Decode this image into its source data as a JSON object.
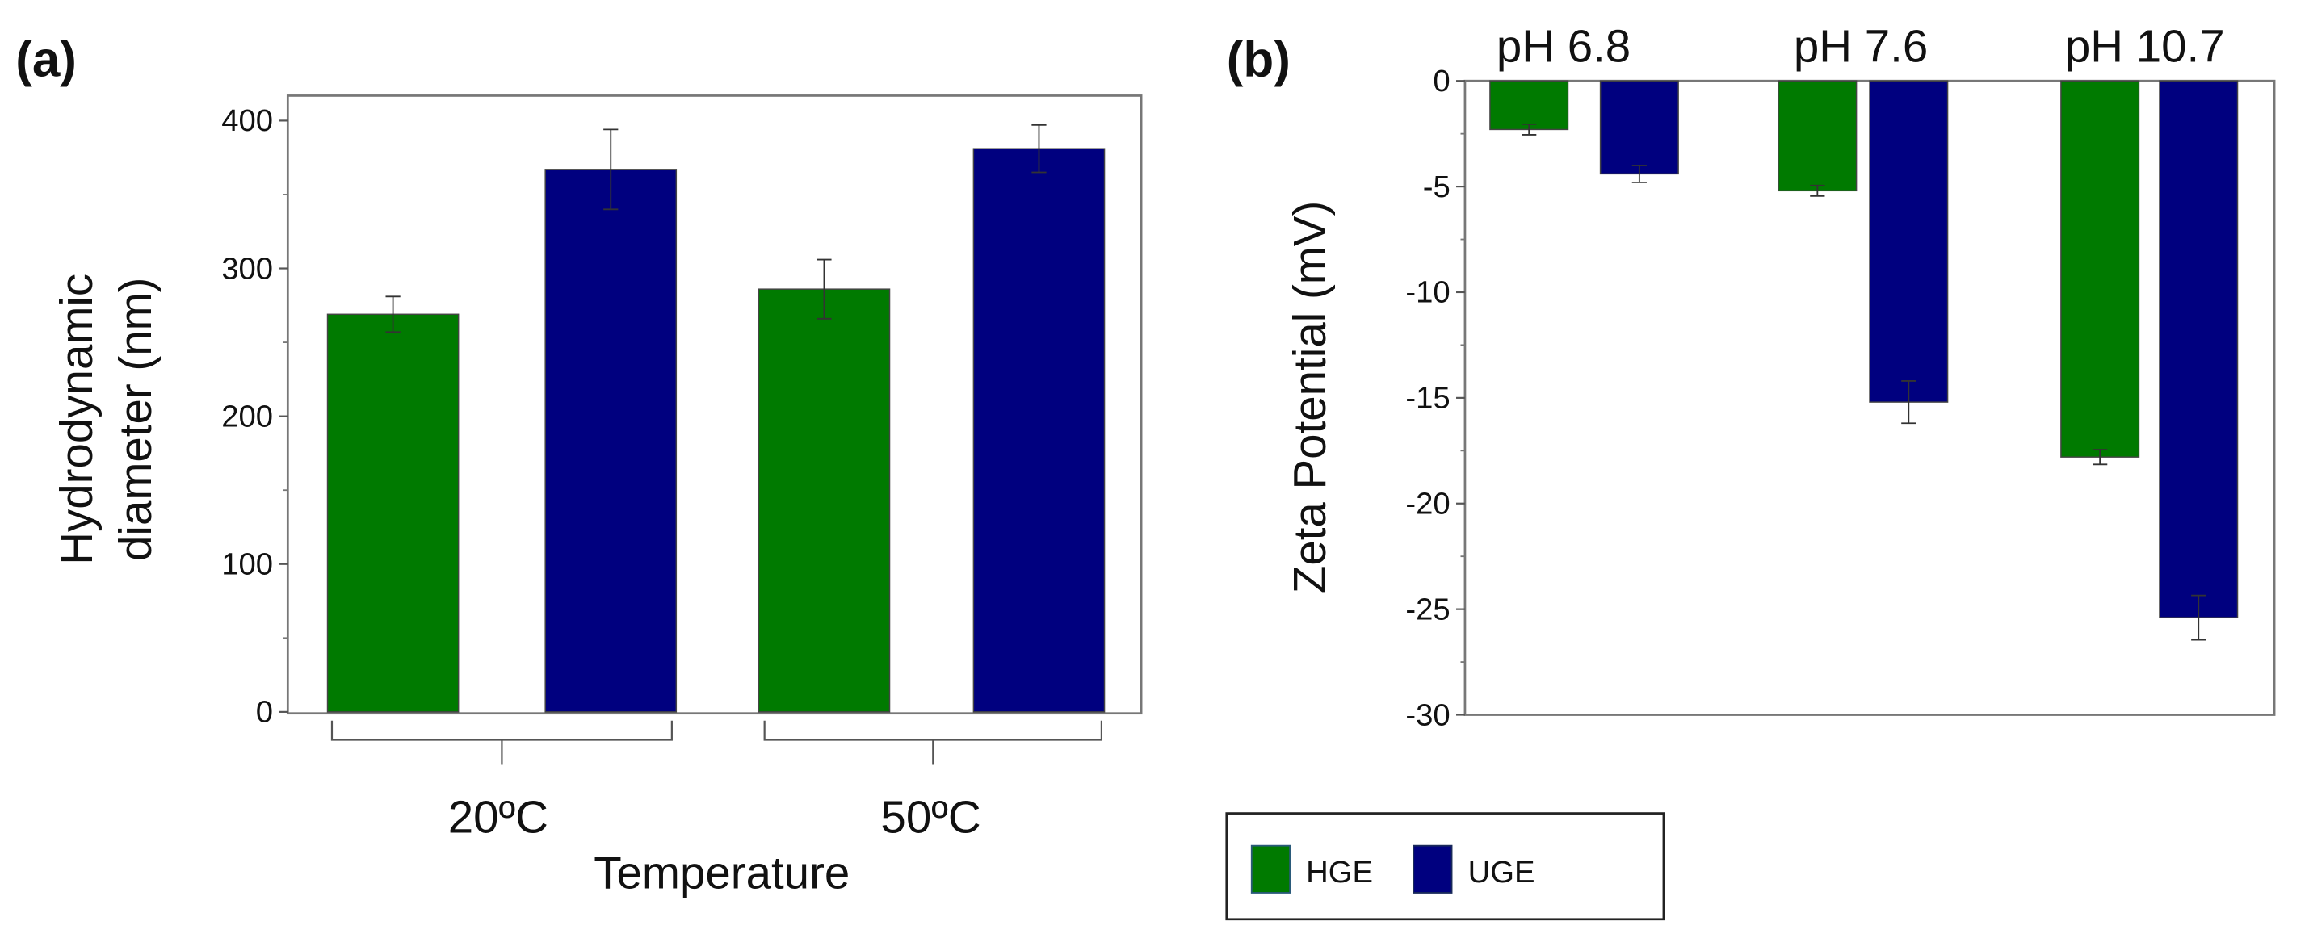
{
  "chart_data": [
    {
      "type": "bar",
      "panel_label": "(a)",
      "title": "",
      "xlabel": "Temperature",
      "ylabel_lines": [
        "Hydrodynamic",
        "diameter (nm)"
      ],
      "categories": [
        "20ºC",
        "50ºC"
      ],
      "ylim": [
        0,
        420
      ],
      "yticks": [
        0,
        100,
        200,
        300,
        400
      ],
      "series": [
        {
          "name": "HGE",
          "color": "#007a00",
          "values": [
            269,
            286
          ],
          "errors": [
            12,
            20
          ]
        },
        {
          "name": "UGE",
          "color": "#00007f",
          "values": [
            367,
            381
          ],
          "errors": [
            27,
            16
          ]
        }
      ],
      "grid": false
    },
    {
      "type": "bar",
      "panel_label": "(b)",
      "title": "",
      "xlabel": "",
      "ylabel": "Zeta Potential (mV)",
      "categories": [
        "pH 6.8",
        "pH 7.6",
        "pH 10.7"
      ],
      "category_position": "top",
      "ylim": [
        -30,
        0
      ],
      "yticks": [
        0,
        -5,
        -10,
        -15,
        -20,
        -25,
        -30
      ],
      "series": [
        {
          "name": "HGE",
          "color": "#007a00",
          "values": [
            -2.3,
            -5.2,
            -17.8
          ],
          "errors": [
            0.25,
            0.25,
            0.35
          ]
        },
        {
          "name": "UGE",
          "color": "#00007f",
          "values": [
            -4.4,
            -15.2,
            -25.4
          ],
          "errors": [
            0.4,
            1.0,
            1.05
          ]
        }
      ],
      "grid": false
    }
  ],
  "legend": {
    "placement": "bottom-center",
    "items": [
      {
        "label": "HGE",
        "color": "#007a00"
      },
      {
        "label": "UGE",
        "color": "#00007f"
      }
    ]
  }
}
